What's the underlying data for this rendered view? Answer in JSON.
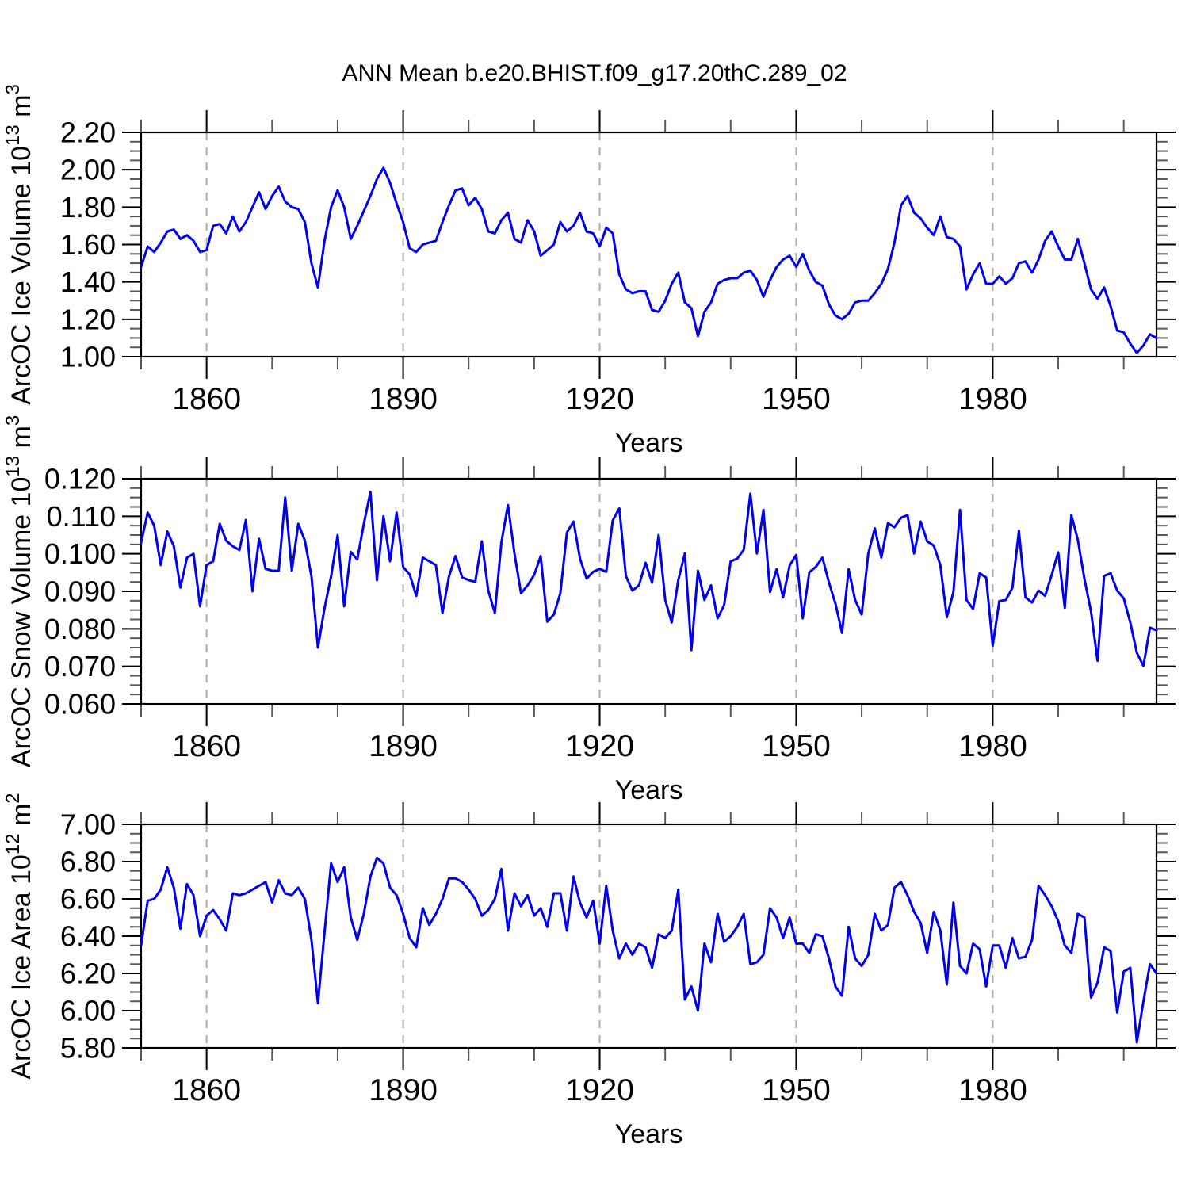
{
  "title": "ANN Mean b.e20.BHIST.f09_g17.20thC.289_02",
  "colors": {
    "line": "#0000ee",
    "frame": "#000000",
    "grid": "#ababab",
    "minor_tick": "#5a5a5a"
  },
  "x_axis": {
    "label": "Years",
    "start_year": 1850,
    "end_year": 2005,
    "major_ticks": [
      1860,
      1890,
      1920,
      1950,
      1980
    ],
    "minor_step": 10
  },
  "chart_data": [
    {
      "id": "ice-volume",
      "type": "line",
      "series_name": "ArcOC Ice Volume",
      "ylabel_segments": [
        {
          "t": "ArcOC Ice Volume 10"
        },
        {
          "t": "13",
          "sup": true
        },
        {
          "t": " m"
        },
        {
          "t": "3",
          "sup": true
        }
      ],
      "xlabel": "Years",
      "ylim": [
        1.0,
        2.2
      ],
      "ytick_step": 0.2,
      "ytick_minor_step": 0.05,
      "ytick_decimals": 2,
      "x_start": 1850,
      "values": [
        1.48,
        1.59,
        1.56,
        1.61,
        1.67,
        1.68,
        1.63,
        1.65,
        1.62,
        1.56,
        1.57,
        1.7,
        1.71,
        1.66,
        1.75,
        1.67,
        1.72,
        1.8,
        1.88,
        1.79,
        1.86,
        1.91,
        1.83,
        1.8,
        1.79,
        1.72,
        1.5,
        1.37,
        1.62,
        1.8,
        1.89,
        1.8,
        1.63,
        1.7,
        1.78,
        1.86,
        1.95,
        2.01,
        1.93,
        1.82,
        1.72,
        1.58,
        1.56,
        1.6,
        1.61,
        1.62,
        1.72,
        1.81,
        1.89,
        1.9,
        1.81,
        1.85,
        1.79,
        1.67,
        1.66,
        1.73,
        1.77,
        1.63,
        1.61,
        1.73,
        1.67,
        1.54,
        1.57,
        1.6,
        1.72,
        1.67,
        1.7,
        1.77,
        1.67,
        1.66,
        1.59,
        1.69,
        1.66,
        1.44,
        1.36,
        1.34,
        1.35,
        1.35,
        1.25,
        1.24,
        1.3,
        1.39,
        1.45,
        1.29,
        1.26,
        1.11,
        1.24,
        1.29,
        1.39,
        1.41,
        1.42,
        1.42,
        1.45,
        1.46,
        1.41,
        1.32,
        1.41,
        1.48,
        1.52,
        1.54,
        1.48,
        1.55,
        1.46,
        1.4,
        1.38,
        1.28,
        1.22,
        1.2,
        1.23,
        1.29,
        1.3,
        1.3,
        1.34,
        1.39,
        1.47,
        1.61,
        1.81,
        1.86,
        1.77,
        1.74,
        1.69,
        1.65,
        1.75,
        1.64,
        1.63,
        1.59,
        1.36,
        1.44,
        1.5,
        1.39,
        1.39,
        1.43,
        1.39,
        1.42,
        1.5,
        1.51,
        1.45,
        1.52,
        1.62,
        1.67,
        1.59,
        1.52,
        1.52,
        1.63,
        1.5,
        1.36,
        1.31,
        1.37,
        1.27,
        1.14,
        1.13,
        1.07,
        1.02,
        1.06,
        1.12,
        1.1
      ]
    },
    {
      "id": "snow-volume",
      "type": "line",
      "series_name": "ArcOC Snow Volume",
      "ylabel_segments": [
        {
          "t": "ArcOC Snow Volume 10"
        },
        {
          "t": "13",
          "sup": true
        },
        {
          "t": " m"
        },
        {
          "t": "3",
          "sup": true
        }
      ],
      "xlabel": "Years",
      "ylim": [
        0.06,
        0.12
      ],
      "ytick_step": 0.01,
      "ytick_minor_step": 0.0025,
      "ytick_decimals": 3,
      "x_start": 1850,
      "values": [
        0.103,
        0.111,
        0.1075,
        0.097,
        0.106,
        0.102,
        0.091,
        0.099,
        0.1,
        0.086,
        0.097,
        0.098,
        0.108,
        0.1035,
        0.102,
        0.101,
        0.109,
        0.09,
        0.104,
        0.096,
        0.0955,
        0.0955,
        0.115,
        0.0955,
        0.108,
        0.1035,
        0.094,
        0.075,
        0.0855,
        0.094,
        0.105,
        0.086,
        0.1005,
        0.0985,
        0.108,
        0.1165,
        0.093,
        0.11,
        0.098,
        0.111,
        0.0965,
        0.0945,
        0.0888,
        0.099,
        0.098,
        0.097,
        0.0842,
        0.094,
        0.0994,
        0.0937,
        0.093,
        0.0925,
        0.1033,
        0.0902,
        0.0842,
        0.103,
        0.113,
        0.1,
        0.0895,
        0.0916,
        0.0944,
        0.0994,
        0.0819,
        0.0838,
        0.0895,
        0.1057,
        0.1086,
        0.0987,
        0.0934,
        0.0952,
        0.096,
        0.0952,
        0.1089,
        0.1121,
        0.0941,
        0.0902,
        0.0916,
        0.0976,
        0.0923,
        0.105,
        0.0877,
        0.0817,
        0.093,
        0.1001,
        0.0743,
        0.0955,
        0.0877,
        0.0916,
        0.0828,
        0.0863,
        0.098,
        0.0987,
        0.1011,
        0.116,
        0.1001,
        0.1117,
        0.0898,
        0.0959,
        0.0884,
        0.0969,
        0.0997,
        0.0828,
        0.0951,
        0.0965,
        0.099,
        0.0923,
        0.0867,
        0.0789,
        0.0959,
        0.0877,
        0.0838,
        0.1001,
        0.1068,
        0.099,
        0.1082,
        0.1071,
        0.1096,
        0.1103,
        0.1001,
        0.1086,
        0.1033,
        0.1022,
        0.097,
        0.0831,
        0.0898,
        0.1117,
        0.0877,
        0.0853,
        0.0948,
        0.0937,
        0.0755,
        0.0874,
        0.0877,
        0.0909,
        0.1061,
        0.0884,
        0.087,
        0.0902,
        0.0888,
        0.0944,
        0.1004,
        0.0856,
        0.1103,
        0.1037,
        0.0933,
        0.0846,
        0.0715,
        0.0941,
        0.0948,
        0.0902,
        0.0881,
        0.0817,
        0.0736,
        0.0701,
        0.0803,
        0.0796
      ]
    },
    {
      "id": "ice-area",
      "type": "line",
      "series_name": "ArcOC Ice Area",
      "ylabel_segments": [
        {
          "t": "ArcOC Ice Area 10"
        },
        {
          "t": "12",
          "sup": true
        },
        {
          "t": " m"
        },
        {
          "t": "2",
          "sup": true
        }
      ],
      "xlabel": "Years",
      "ylim": [
        5.8,
        7.0
      ],
      "ytick_step": 0.2,
      "ytick_minor_step": 0.05,
      "ytick_decimals": 2,
      "x_start": 1850,
      "values": [
        6.35,
        6.59,
        6.6,
        6.65,
        6.77,
        6.66,
        6.44,
        6.68,
        6.62,
        6.4,
        6.51,
        6.54,
        6.49,
        6.43,
        6.63,
        6.62,
        6.63,
        6.65,
        6.67,
        6.69,
        6.58,
        6.7,
        6.63,
        6.62,
        6.66,
        6.6,
        6.38,
        6.04,
        6.42,
        6.79,
        6.69,
        6.77,
        6.5,
        6.38,
        6.52,
        6.72,
        6.82,
        6.79,
        6.66,
        6.62,
        6.52,
        6.39,
        6.34,
        6.55,
        6.46,
        6.52,
        6.6,
        6.71,
        6.71,
        6.69,
        6.65,
        6.6,
        6.51,
        6.54,
        6.6,
        6.76,
        6.43,
        6.63,
        6.56,
        6.62,
        6.51,
        6.55,
        6.45,
        6.63,
        6.63,
        6.43,
        6.72,
        6.58,
        6.5,
        6.59,
        6.36,
        6.67,
        6.43,
        6.28,
        6.36,
        6.3,
        6.36,
        6.34,
        6.23,
        6.41,
        6.39,
        6.43,
        6.65,
        6.06,
        6.13,
        6.0,
        6.36,
        6.26,
        6.52,
        6.37,
        6.4,
        6.45,
        6.52,
        6.25,
        6.26,
        6.3,
        6.55,
        6.5,
        6.39,
        6.5,
        6.36,
        6.36,
        6.31,
        6.41,
        6.4,
        6.28,
        6.13,
        6.08,
        6.45,
        6.28,
        6.24,
        6.3,
        6.52,
        6.43,
        6.46,
        6.66,
        6.69,
        6.62,
        6.53,
        6.47,
        6.31,
        6.53,
        6.43,
        6.14,
        6.58,
        6.24,
        6.2,
        6.36,
        6.33,
        6.13,
        6.35,
        6.35,
        6.23,
        6.39,
        6.28,
        6.29,
        6.38,
        6.67,
        6.62,
        6.56,
        6.48,
        6.35,
        6.31,
        6.52,
        6.5,
        6.07,
        6.15,
        6.34,
        6.32,
        5.99,
        6.21,
        6.23,
        5.83,
        6.05,
        6.25,
        6.2
      ]
    }
  ]
}
